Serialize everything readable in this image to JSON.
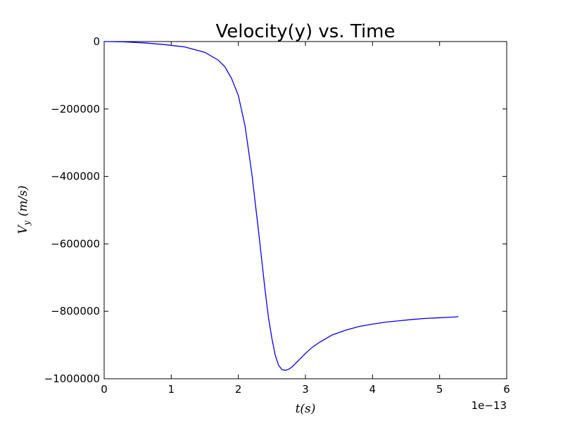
{
  "chart_data": {
    "type": "line",
    "title": "Velocity(y) vs. Time",
    "xlabel": "t(s)",
    "ylabel": "V_y (m/s)",
    "ylabel_main": "V",
    "ylabel_sub": "y",
    "ylabel_units": "(m/s)",
    "x_offset_label": "1e−13",
    "xlim": [
      0,
      6
    ],
    "ylim": [
      -1000000,
      0
    ],
    "grid": false,
    "x_ticks": [
      0,
      1,
      2,
      3,
      4,
      5,
      6
    ],
    "x_tick_labels": [
      "0",
      "1",
      "2",
      "3",
      "4",
      "5",
      "6"
    ],
    "y_ticks": [
      0,
      -200000,
      -400000,
      -600000,
      -800000,
      -1000000
    ],
    "y_tick_labels": [
      "0",
      "−200000",
      "−400000",
      "−600000",
      "−800000",
      "−1000000"
    ],
    "series": [
      {
        "color": "#0000ff",
        "x": [
          0,
          0.3,
          0.6,
          0.9,
          1.2,
          1.5,
          1.7,
          1.8,
          1.9,
          2.0,
          2.1,
          2.2,
          2.3,
          2.35,
          2.4,
          2.45,
          2.5,
          2.55,
          2.6,
          2.65,
          2.7,
          2.75,
          2.8,
          2.85,
          2.9,
          3.0,
          3.1,
          3.2,
          3.4,
          3.6,
          3.8,
          4.0,
          4.2,
          4.4,
          4.6,
          4.8,
          5.0,
          5.2,
          5.28
        ],
        "y": [
          0,
          -1000,
          -4000,
          -9000,
          -16000,
          -32000,
          -55000,
          -75000,
          -110000,
          -160000,
          -250000,
          -390000,
          -560000,
          -650000,
          -740000,
          -820000,
          -880000,
          -930000,
          -960000,
          -973000,
          -975000,
          -972000,
          -965000,
          -955000,
          -945000,
          -925000,
          -907000,
          -893000,
          -870000,
          -856000,
          -845000,
          -838000,
          -832000,
          -828000,
          -824000,
          -821000,
          -819000,
          -817000,
          -816000
        ]
      }
    ]
  }
}
